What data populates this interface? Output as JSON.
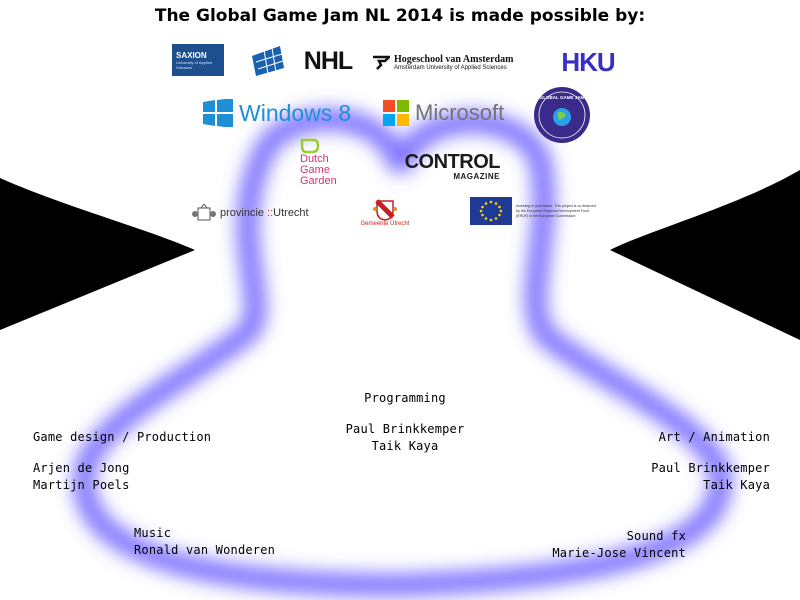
{
  "header": {
    "title": "The Global Game Jam NL 2014 is made possible by:"
  },
  "sponsors": {
    "saxion": {
      "name": "SAXION",
      "sub": "University of Applied Sciences"
    },
    "nhtv": {
      "name": "NHTV"
    },
    "nhl": {
      "name": "NHL"
    },
    "hva": {
      "name": "Hogeschool van Amsterdam",
      "sub": "Amsterdam University of Applied Sciences"
    },
    "hku": {
      "name": "HKU"
    },
    "windows": {
      "name": "Windows",
      "version": "8"
    },
    "microsoft": {
      "name": "Microsoft"
    },
    "ggj": {
      "name": "GLOBAL GAME JAM"
    },
    "dgg": {
      "line1": "Dutch",
      "line2": "Game",
      "line3": "Garden"
    },
    "control": {
      "name": "CONTROL",
      "sub": "MAGAZINE"
    },
    "provincie": {
      "name": "provincie",
      "sep": "::",
      "place": "Utrecht"
    },
    "gemeente": {
      "name": "Gemeente Utrecht"
    },
    "eu": {
      "text": "Investing in your future. This project is co-financed by the European Regional Development Fund (ERDF) of the European Commission"
    }
  },
  "credits": {
    "programming": {
      "role": "Programming",
      "names": [
        "Paul Brinkkemper",
        "Taik Kaya"
      ]
    },
    "design": {
      "role": "Game design / Production",
      "names": [
        "Arjen de Jong",
        "Martijn Poels"
      ]
    },
    "art": {
      "role": "Art / Animation",
      "names": [
        "Paul Brinkkemper",
        "Taik Kaya"
      ]
    },
    "music": {
      "role": "Music",
      "names": [
        "Ronald van Wonderen"
      ]
    },
    "sound": {
      "role": "Sound fx",
      "names": [
        "Marie-Jose Vincent"
      ]
    }
  },
  "colors": {
    "glow": "#6a5cff",
    "background": "#000000",
    "blob": "#ffffff",
    "hku": "#3a2fc4",
    "nhl": "#111111",
    "saxion": "#1d4f8f",
    "control": "#1b1b1b"
  }
}
